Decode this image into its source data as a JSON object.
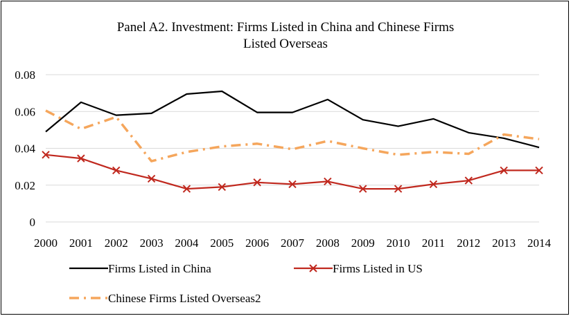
{
  "chart_data": {
    "type": "line",
    "title_lines": [
      "Panel A2. Investment: Firms Listed in China and Chinese Firms",
      "Listed Overseas"
    ],
    "xlabel": "",
    "ylabel": "",
    "x": [
      "2000",
      "2001",
      "2002",
      "2003",
      "2004",
      "2005",
      "2006",
      "2007",
      "2008",
      "2009",
      "2010",
      "2011",
      "2012",
      "2013",
      "2014"
    ],
    "ylim": [
      0,
      0.08
    ],
    "yticks": [
      "0",
      "0.02",
      "0.04",
      "0.06",
      "0.08"
    ],
    "grid": "horizontal",
    "legend_position": "bottom",
    "series": [
      {
        "name": "Firms Listed in China",
        "color": "#000000",
        "style": "solid",
        "values": [
          0.049,
          0.065,
          0.058,
          0.059,
          0.0695,
          0.071,
          0.0595,
          0.0595,
          0.0665,
          0.0555,
          0.052,
          0.056,
          0.0485,
          0.0455,
          0.0405
        ]
      },
      {
        "name": "Firms Listed in US",
        "color": "#c0281e",
        "style": "solid-x-markers",
        "values": [
          0.0365,
          0.0345,
          0.028,
          0.0235,
          0.018,
          0.019,
          0.0215,
          0.0205,
          0.022,
          0.018,
          0.018,
          0.0205,
          0.0225,
          0.028,
          0.028
        ]
      },
      {
        "name": "Chinese Firms Listed Overseas2",
        "color": "#f5a65c",
        "style": "dash-dot",
        "values": [
          0.0605,
          0.0505,
          0.057,
          0.033,
          0.038,
          0.041,
          0.0425,
          0.0395,
          0.044,
          0.04,
          0.0365,
          0.038,
          0.037,
          0.0475,
          0.045
        ]
      }
    ]
  }
}
